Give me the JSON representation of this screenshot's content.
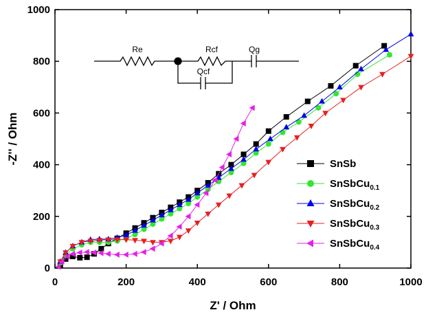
{
  "chart_data": {
    "type": "scatter",
    "xlabel": "Z' / Ohm",
    "ylabel": "-Z'' / Ohm",
    "xlim": [
      0,
      1000
    ],
    "ylim": [
      0,
      1000
    ],
    "xticks": [
      0,
      200,
      400,
      600,
      800,
      1000
    ],
    "yticks": [
      0,
      200,
      400,
      600,
      800,
      1000
    ],
    "legend": "center right",
    "circuit_labels": [
      "Re",
      "Rcf",
      "Qcf",
      "Qg"
    ],
    "series": [
      {
        "name": "SnSb",
        "color": "#000000",
        "marker": "square",
        "x": [
          15,
          30,
          50,
          70,
          90,
          110,
          130,
          150,
          175,
          200,
          225,
          250,
          275,
          300,
          325,
          350,
          375,
          400,
          430,
          460,
          495,
          530,
          565,
          600,
          650,
          710,
          775,
          845,
          925
        ],
        "values": [
          10,
          35,
          45,
          40,
          42,
          55,
          75,
          95,
          115,
          135,
          155,
          175,
          195,
          215,
          235,
          255,
          275,
          300,
          330,
          365,
          400,
          440,
          480,
          530,
          585,
          645,
          705,
          783,
          860
        ]
      },
      {
        "name": "SnSbCu0.1",
        "color": "#33e633",
        "marker": "circle",
        "x": [
          15,
          30,
          50,
          75,
          100,
          125,
          150,
          175,
          200,
          225,
          250,
          275,
          300,
          325,
          350,
          375,
          400,
          430,
          460,
          495,
          530,
          565,
          600,
          640,
          685,
          740,
          790,
          850,
          940
        ],
        "values": [
          20,
          50,
          75,
          90,
          100,
          100,
          100,
          105,
          115,
          130,
          150,
          170,
          190,
          210,
          230,
          250,
          275,
          305,
          335,
          370,
          405,
          445,
          480,
          525,
          565,
          620,
          675,
          750,
          825
        ]
      },
      {
        "name": "SnSbCu0.2",
        "color": "#0000e6",
        "marker": "triangle-up",
        "x": [
          15,
          30,
          50,
          75,
          100,
          125,
          150,
          175,
          200,
          225,
          250,
          275,
          300,
          325,
          350,
          375,
          400,
          430,
          460,
          495,
          530,
          565,
          605,
          650,
          700,
          750,
          800,
          860,
          930,
          1000
        ],
        "values": [
          25,
          60,
          85,
          100,
          110,
          112,
          112,
          118,
          128,
          145,
          165,
          185,
          205,
          225,
          245,
          265,
          290,
          320,
          350,
          385,
          420,
          460,
          500,
          545,
          590,
          645,
          700,
          770,
          845,
          905
        ]
      },
      {
        "name": "SnSbCu0.3",
        "color": "#e62020",
        "marker": "triangle-down",
        "x": [
          15,
          30,
          50,
          75,
          100,
          125,
          150,
          175,
          200,
          225,
          250,
          275,
          300,
          325,
          350,
          375,
          400,
          430,
          460,
          490,
          525,
          560,
          600,
          640,
          680,
          720,
          760,
          810,
          860,
          920,
          1000
        ],
        "values": [
          25,
          60,
          85,
          100,
          105,
          108,
          110,
          110,
          110,
          108,
          105,
          100,
          100,
          105,
          120,
          145,
          175,
          210,
          245,
          280,
          320,
          360,
          410,
          460,
          505,
          550,
          600,
          650,
          700,
          750,
          820
        ]
      },
      {
        "name": "SnSbCu0.4",
        "color": "#e620e6",
        "marker": "triangle-left",
        "x": [
          10,
          20,
          35,
          50,
          70,
          90,
          110,
          130,
          150,
          175,
          200,
          225,
          250,
          275,
          300,
          325,
          350,
          375,
          400,
          425,
          450,
          470,
          490,
          510,
          530,
          555
        ],
        "values": [
          5,
          25,
          45,
          55,
          60,
          62,
          60,
          58,
          55,
          52,
          52,
          55,
          62,
          75,
          95,
          125,
          160,
          200,
          245,
          290,
          340,
          390,
          440,
          500,
          560,
          620
        ]
      }
    ]
  }
}
